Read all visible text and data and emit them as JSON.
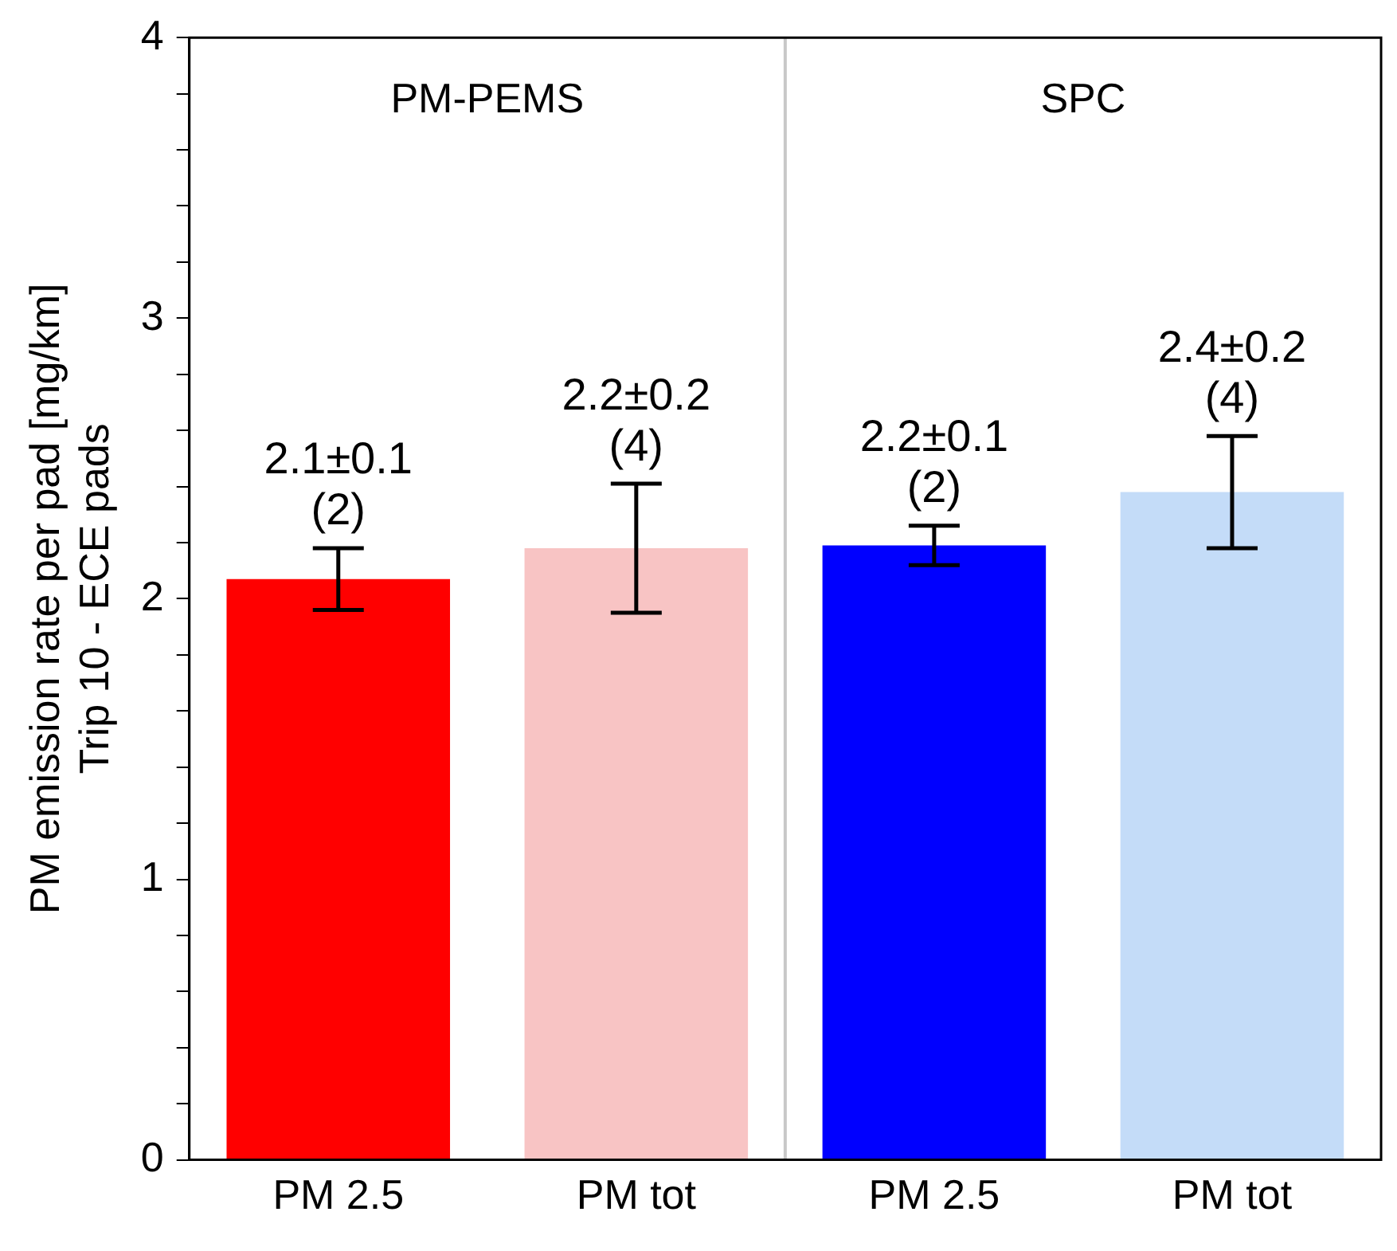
{
  "chart_data": {
    "type": "bar",
    "ylabel": "PM emission rate per pad [mg/km]\nTrip 10 - ECE pads",
    "categories": [
      "PM 2.5",
      "PM tot",
      "PM 2.5",
      "PM tot"
    ],
    "values": [
      2.07,
      2.18,
      2.19,
      2.38
    ],
    "colors": [
      "#ff0000",
      "#f8c4c4",
      "#0000ff",
      "#c4dcf8"
    ],
    "errors": [
      [
        1.96,
        2.18
      ],
      [
        1.95,
        2.41
      ],
      [
        2.12,
        2.26
      ],
      [
        2.18,
        2.58
      ]
    ],
    "value_labels": [
      "2.1±0.1\n(2)",
      "2.2±0.2\n(4)",
      "2.2±0.1\n(2)",
      "2.4±0.2\n(4)"
    ],
    "annotations": [
      "PM-PEMS",
      "SPC"
    ],
    "ylim": [
      0,
      4
    ],
    "yticks": [
      0,
      {
        "value": 0.2,
        "label": null
      },
      {
        "value": 0.4,
        "label": null
      },
      {
        "value": 0.6,
        "label": null
      },
      {
        "value": 0.8,
        "label": null
      },
      1,
      {
        "value": 1.2,
        "label": null
      },
      {
        "value": 1.4,
        "label": null
      },
      {
        "value": 1.6,
        "label": null
      },
      {
        "value": 1.8,
        "label": null
      },
      2,
      {
        "value": 2.2,
        "label": null
      },
      {
        "value": 2.4,
        "label": null
      },
      {
        "value": 2.6,
        "label": null
      },
      {
        "value": 2.8,
        "label": null
      },
      3,
      {
        "value": 3.2,
        "label": null
      },
      {
        "value": 3.4,
        "label": null
      },
      {
        "value": 3.6,
        "label": null
      },
      {
        "value": 3.8,
        "label": null
      },
      4
    ],
    "grid": false,
    "legend": false
  }
}
